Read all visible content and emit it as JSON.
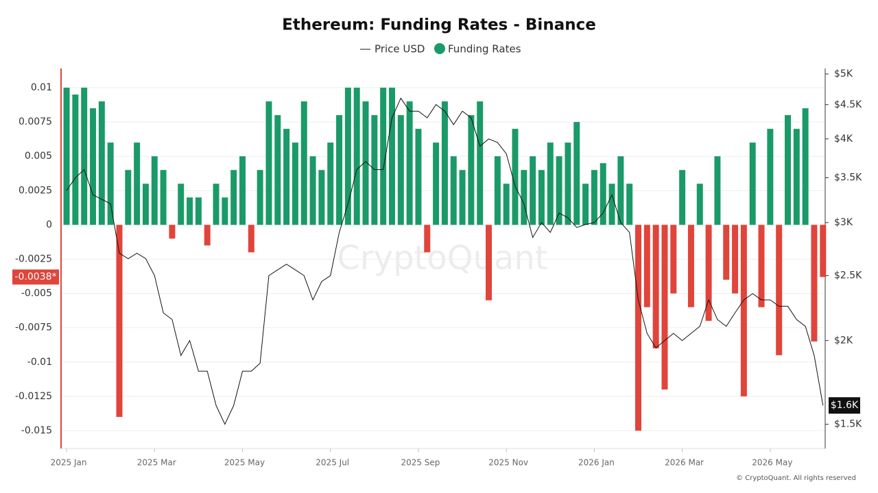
{
  "chart_data": {
    "type": "bar_line",
    "title": "Ethereum: Funding Rates - Binance",
    "legend": [
      "Price USD",
      "Funding Rates"
    ],
    "watermark": "CryptoQuant",
    "footer": "© CryptoQuant. All rights reserved",
    "grid": true,
    "xlim": [
      -0.11,
      17.25
    ],
    "xticks": [
      {
        "value": 0,
        "label": "2025 Jan"
      },
      {
        "value": 2,
        "label": "2025 Mar"
      },
      {
        "value": 4,
        "label": "2025 May"
      },
      {
        "value": 6,
        "label": "2025 Jul"
      },
      {
        "value": 8,
        "label": "2025 Sep"
      },
      {
        "value": 10,
        "label": "2025 Nov"
      },
      {
        "value": 12,
        "label": "2026 Jan"
      },
      {
        "value": 14,
        "label": "2026 Mar"
      },
      {
        "value": 16,
        "label": "2026 May"
      }
    ],
    "ylim": [
      -0.0163,
      0.0114
    ],
    "yticks": [
      0.01,
      0.0075,
      0.005,
      0.0025,
      0,
      -0.0025,
      -0.005,
      -0.0075,
      -0.01,
      -0.0125,
      -0.015
    ],
    "y2lim": [
      1380,
      5095
    ],
    "y2_log": true,
    "y2ticks": [
      {
        "value": 1500,
        "label": "$1.5K"
      },
      {
        "value": 2000,
        "label": "$2K"
      },
      {
        "value": 2500,
        "label": "$2.5K"
      },
      {
        "value": 3000,
        "label": "$3K"
      },
      {
        "value": 3500,
        "label": "$3.5K"
      },
      {
        "value": 4000,
        "label": "$4K"
      },
      {
        "value": 4500,
        "label": "$4.5K"
      },
      {
        "value": 5000,
        "label": "$5K"
      }
    ],
    "x": [
      0,
      0.2,
      0.4,
      0.6,
      0.8,
      1,
      1.2,
      1.4,
      1.6,
      1.8,
      2,
      2.2,
      2.4,
      2.6,
      2.8,
      3,
      3.2,
      3.4,
      3.6,
      3.8,
      4,
      4.2,
      4.4,
      4.6,
      4.8,
      5,
      5.2,
      5.4,
      5.6,
      5.8,
      6,
      6.2,
      6.4,
      6.6,
      6.8,
      7,
      7.2,
      7.4,
      7.6,
      7.8,
      8,
      8.2,
      8.4,
      8.6,
      8.8,
      9,
      9.2,
      9.4,
      9.6,
      9.8,
      10,
      10.2,
      10.4,
      10.6,
      10.8,
      11,
      11.2,
      11.4,
      11.6,
      11.8,
      12,
      12.2,
      12.4,
      12.6,
      12.8,
      13,
      13.2,
      13.4,
      13.6,
      13.8,
      14,
      14.2,
      14.4,
      14.6,
      14.8,
      15,
      15.2,
      15.4,
      15.6,
      15.8,
      16,
      16.2,
      16.4,
      16.6,
      16.8,
      17,
      17.2
    ],
    "series": [
      {
        "name": "Funding Rates",
        "positive_color": "#1a9a68",
        "negative_color": "#e0443a",
        "values": [
          0.01,
          0.0095,
          0.01,
          0.0085,
          0.009,
          0.006,
          -0.014,
          0.004,
          0.006,
          0.003,
          0.005,
          0.004,
          -0.001,
          0.003,
          0.002,
          0.002,
          -0.0015,
          0.003,
          0.002,
          0.004,
          0.005,
          -0.002,
          0.004,
          0.009,
          0.008,
          0.007,
          0.006,
          0.009,
          0.005,
          0.004,
          0.006,
          0.008,
          0.01,
          0.01,
          0.009,
          0.008,
          0.01,
          0.01,
          0.008,
          0.009,
          0.007,
          -0.002,
          0.006,
          0.009,
          0.005,
          0.004,
          0.008,
          0.009,
          -0.0055,
          0.005,
          0.003,
          0.007,
          0.004,
          0.005,
          0.004,
          0.006,
          0.005,
          0.006,
          0.0075,
          0.003,
          0.004,
          0.0045,
          0.003,
          0.005,
          0.003,
          -0.015,
          -0.006,
          -0.009,
          -0.012,
          -0.005,
          0.004,
          -0.006,
          0.003,
          -0.007,
          0.005,
          -0.004,
          -0.005,
          -0.0125,
          0.006,
          -0.006,
          0.007,
          -0.0095,
          0.008,
          0.007,
          0.0085,
          -0.0085,
          -0.0038
        ]
      },
      {
        "name": "Price USD",
        "axis": "y2",
        "color": "#111111",
        "values": [
          3350,
          3500,
          3600,
          3300,
          3250,
          3200,
          2700,
          2650,
          2700,
          2650,
          2500,
          2200,
          2150,
          1900,
          2000,
          1800,
          1800,
          1600,
          1500,
          1600,
          1800,
          1800,
          1850,
          2500,
          2550,
          2600,
          2550,
          2500,
          2300,
          2450,
          2500,
          2900,
          3200,
          3600,
          3700,
          3600,
          3600,
          4300,
          4600,
          4400,
          4400,
          4300,
          4500,
          4400,
          4200,
          4400,
          4300,
          3900,
          4000,
          3950,
          3800,
          3400,
          3200,
          2850,
          3000,
          2900,
          3100,
          3050,
          2950,
          2980,
          3000,
          3100,
          3300,
          3000,
          2900,
          2300,
          2050,
          1950,
          2000,
          2050,
          2000,
          2050,
          2100,
          2300,
          2150,
          2100,
          2200,
          2300,
          2350,
          2300,
          2300,
          2250,
          2250,
          2150,
          2100,
          1900,
          1600
        ]
      }
    ],
    "current_value": {
      "value": -0.0038,
      "label": "-0.0038*"
    },
    "current_price": {
      "value": 1600,
      "label": "$1.6K"
    }
  }
}
